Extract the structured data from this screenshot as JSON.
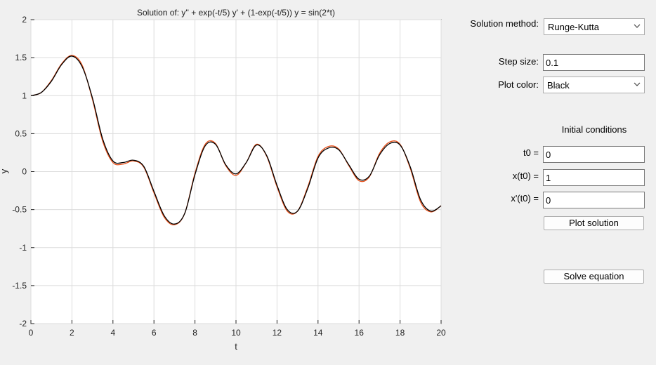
{
  "plot": {
    "title": "Solution of: y'' + exp(-t/5) y' + (1-exp(-t/5)) y = sin(2*t)",
    "xlabel": "t",
    "ylabel": "y",
    "chart_data": {
      "type": "line",
      "title": "Solution of: y'' + exp(-t/5) y' + (1-exp(-t/5)) y = sin(2*t)",
      "xlabel": "t",
      "ylabel": "y",
      "xlim": [
        0,
        20
      ],
      "ylim": [
        -2,
        2
      ],
      "xticks": [
        0,
        2,
        4,
        6,
        8,
        10,
        12,
        14,
        16,
        18,
        20
      ],
      "yticks": [
        -2,
        -1.5,
        -1,
        -0.5,
        0,
        0.5,
        1,
        1.5,
        2
      ],
      "xtick_labels": [
        "0",
        "2",
        "4",
        "6",
        "8",
        "10",
        "12",
        "14",
        "16",
        "18",
        "20"
      ],
      "ytick_labels": [
        "-2",
        "-1.5",
        "-1",
        "-0.5",
        "0",
        "0.5",
        "1",
        "1.5",
        "2"
      ],
      "grid": true,
      "series": [
        {
          "color": "#e8501a",
          "x": [
            0,
            0.5,
            1,
            1.5,
            2,
            2.5,
            3,
            3.5,
            4,
            4.5,
            5,
            5.5,
            6,
            6.5,
            7,
            7.5,
            8,
            8.5,
            9,
            9.5,
            10,
            10.5,
            11,
            11.5,
            12,
            12.5,
            13,
            13.5,
            14,
            14.5,
            15,
            15.5,
            16,
            16.5,
            17,
            17.5,
            18,
            18.5,
            19,
            19.5,
            20
          ],
          "values": [
            1,
            1.04,
            1.2,
            1.42,
            1.53,
            1.4,
            0.95,
            0.4,
            0.12,
            0.1,
            0.14,
            0.06,
            -0.28,
            -0.6,
            -0.7,
            -0.55,
            -0.02,
            0.36,
            0.37,
            0.08,
            -0.05,
            0.12,
            0.36,
            0.2,
            -0.2,
            -0.52,
            -0.52,
            -0.2,
            0.2,
            0.33,
            0.3,
            0.08,
            -0.12,
            -0.07,
            0.24,
            0.39,
            0.36,
            0.04,
            -0.4,
            -0.53,
            -0.45
          ]
        },
        {
          "color": "#000000",
          "x": [
            0,
            0.5,
            1,
            1.5,
            2,
            2.5,
            3,
            3.5,
            4,
            4.5,
            5,
            5.5,
            6,
            6.5,
            7,
            7.5,
            8,
            8.5,
            9,
            9.5,
            10,
            10.5,
            11,
            11.5,
            12,
            12.5,
            13,
            13.5,
            14,
            14.5,
            15,
            15.5,
            16,
            16.5,
            17,
            17.5,
            18,
            18.5,
            19,
            19.5,
            20
          ],
          "values": [
            1,
            1.04,
            1.19,
            1.41,
            1.52,
            1.38,
            0.97,
            0.43,
            0.14,
            0.12,
            0.15,
            0.07,
            -0.26,
            -0.58,
            -0.69,
            -0.55,
            -0.04,
            0.34,
            0.36,
            0.09,
            -0.03,
            0.12,
            0.35,
            0.21,
            -0.18,
            -0.5,
            -0.52,
            -0.22,
            0.18,
            0.31,
            0.29,
            0.09,
            -0.1,
            -0.06,
            0.22,
            0.37,
            0.35,
            0.06,
            -0.37,
            -0.52,
            -0.45
          ]
        }
      ]
    }
  },
  "controls": {
    "method_label": "Solution method:",
    "method_value": "Runge-Kutta",
    "step_label": "Step size:",
    "step_value": "0.1",
    "color_label": "Plot color:",
    "color_value": "Black",
    "initial_heading": "Initial conditions",
    "t0_label": "t0 =",
    "t0_value": "0",
    "xt0_label": "x(t0) =",
    "xt0_value": "1",
    "dxt0_label": "x'(t0) =",
    "dxt0_value": "0",
    "plot_button": "Plot solution",
    "solve_button": "Solve equation"
  }
}
